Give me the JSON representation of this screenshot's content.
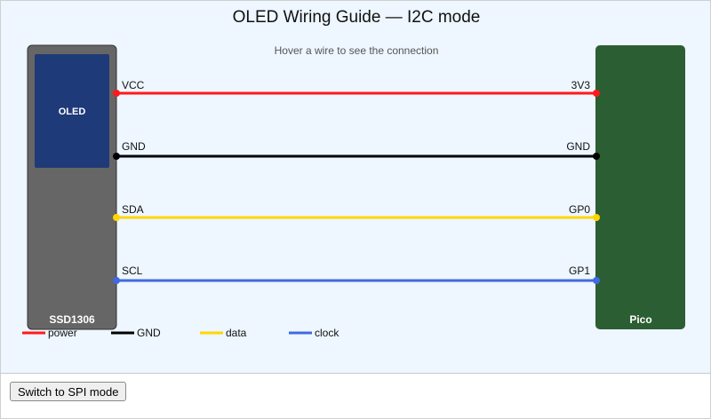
{
  "title": "OLED Wiring Guide — I2C mode",
  "hint": "Hover a wire to see the connection",
  "oled_board": {
    "label": "SSD1306",
    "screen_label": "OLED",
    "color": "#666666",
    "screen_color": "#1e3a78"
  },
  "pico_board": {
    "label": "Pico",
    "color": "#2c5e33"
  },
  "wires": [
    {
      "left_pin": "VCC",
      "right_pin": "3V3",
      "type": "power",
      "color": "#ff1a1a"
    },
    {
      "left_pin": "GND",
      "right_pin": "GND",
      "type": "GND",
      "color": "#000000"
    },
    {
      "left_pin": "SDA",
      "right_pin": "GP0",
      "type": "data",
      "color": "#ffd600"
    },
    {
      "left_pin": "SCL",
      "right_pin": "GP1",
      "type": "clock",
      "color": "#4169e1"
    }
  ],
  "legend": [
    {
      "label": "power",
      "color": "#ff1a1a"
    },
    {
      "label": "GND",
      "color": "#000000"
    },
    {
      "label": "data",
      "color": "#ffd600"
    },
    {
      "label": "clock",
      "color": "#4169e1"
    }
  ],
  "button": {
    "label": "Switch to SPI mode"
  }
}
